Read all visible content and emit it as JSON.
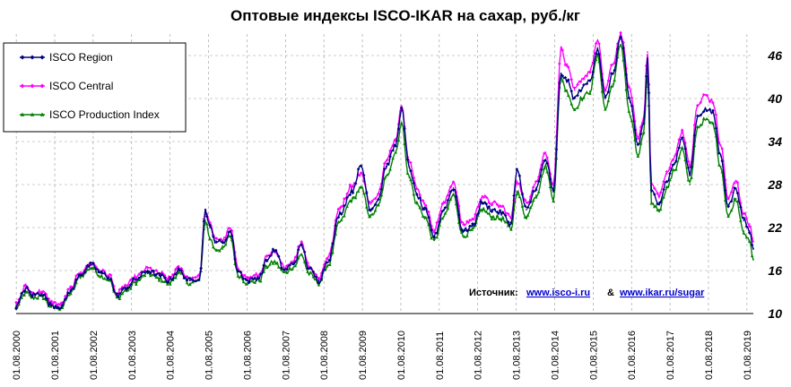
{
  "chart_data": {
    "type": "line",
    "title": "Оптовые индексы ISCO-IKAR на сахар, руб./кг",
    "ylim": [
      10,
      49
    ],
    "xlim": [
      2000.58,
      2019.75
    ],
    "yticks": [
      10,
      16,
      22,
      28,
      34,
      40,
      46
    ],
    "xticks": [
      "01.08.2000",
      "01.08.2001",
      "01.08.2002",
      "01.08.2003",
      "01.08.2004",
      "01.08.2005",
      "01.08.2006",
      "01.08.2007",
      "01.08.2008",
      "01.08.2009",
      "01.08.2010",
      "01.08.2011",
      "01.08.2012",
      "01.08.2013",
      "01.08.2014",
      "01.08.2015",
      "01.08.2016",
      "01.08.2017",
      "01.08.2018",
      "01.08.2019"
    ],
    "grid": true,
    "legend_position": "top-left",
    "x": [
      2000.58,
      2000.83,
      2001.0,
      2001.25,
      2001.5,
      2001.75,
      2002.0,
      2002.25,
      2002.55,
      2002.8,
      2003.0,
      2003.2,
      2003.45,
      2003.7,
      2004.0,
      2004.3,
      2004.55,
      2004.8,
      2005.1,
      2005.35,
      2005.5,
      2005.62,
      2005.75,
      2005.95,
      2006.15,
      2006.35,
      2006.6,
      2006.9,
      2007.1,
      2007.3,
      2007.55,
      2007.8,
      2008.0,
      2008.2,
      2008.45,
      2008.7,
      2009.0,
      2009.3,
      2009.55,
      2009.8,
      2010.0,
      2010.2,
      2010.45,
      2010.6,
      2010.8,
      2011.0,
      2011.2,
      2011.45,
      2011.7,
      2011.95,
      2012.2,
      2012.45,
      2012.7,
      2012.95,
      2013.2,
      2013.45,
      2013.6,
      2013.85,
      2014.1,
      2014.35,
      2014.55,
      2014.75,
      2014.9,
      2015.1,
      2015.3,
      2015.5,
      2015.7,
      2015.9,
      2016.1,
      2016.3,
      2016.55,
      2016.75,
      2016.9,
      2017.0,
      2017.1,
      2017.3,
      2017.5,
      2017.7,
      2017.9,
      2018.1,
      2018.3,
      2018.5,
      2018.7,
      2018.9,
      2019.1,
      2019.3,
      2019.5,
      2019.65,
      2019.75
    ],
    "series": [
      {
        "name": "ISCO Region",
        "color": "#000080",
        "marker": "diamond",
        "values": [
          11.0,
          13.5,
          12.6,
          12.8,
          11.2,
          11.0,
          13.2,
          15.5,
          16.8,
          15.6,
          15.1,
          12.5,
          13.6,
          14.8,
          16.0,
          15.3,
          14.6,
          16.0,
          14.6,
          15.0,
          24.5,
          22.0,
          20.2,
          19.8,
          21.5,
          15.9,
          14.6,
          15.0,
          17.5,
          18.8,
          16.1,
          17.0,
          19.5,
          16.2,
          14.6,
          17.5,
          24.0,
          27.0,
          30.5,
          24.5,
          26.0,
          30.5,
          33.5,
          38.5,
          30.5,
          26.5,
          24.5,
          20.8,
          24.5,
          27.5,
          21.5,
          22.2,
          25.5,
          24.5,
          24.0,
          22.5,
          30.0,
          24.5,
          27.5,
          31.5,
          27.0,
          43.5,
          42.5,
          40.0,
          41.5,
          42.5,
          47.0,
          40.0,
          43.5,
          48.5,
          39.5,
          33.5,
          36.5,
          45.5,
          27.0,
          25.5,
          28.5,
          31.0,
          34.5,
          29.5,
          37.5,
          38.5,
          38.0,
          32.0,
          25.0,
          27.5,
          23.0,
          21.5,
          19.0
        ]
      },
      {
        "name": "ISCO Central",
        "color": "#ff00ff",
        "marker": "diamond",
        "values": [
          11.3,
          13.8,
          12.9,
          13.1,
          11.5,
          11.3,
          13.5,
          15.8,
          17.0,
          15.9,
          15.4,
          12.8,
          13.9,
          15.1,
          16.3,
          15.6,
          14.9,
          16.3,
          14.9,
          15.3,
          24.2,
          22.5,
          20.6,
          20.2,
          21.9,
          16.3,
          15.0,
          15.4,
          17.9,
          18.5,
          16.5,
          17.4,
          20.0,
          16.6,
          15.0,
          18.0,
          24.8,
          27.8,
          29.5,
          25.3,
          26.8,
          31.2,
          34.4,
          39.0,
          31.4,
          27.4,
          25.4,
          21.7,
          25.4,
          28.4,
          22.4,
          23.1,
          26.4,
          25.4,
          24.9,
          23.4,
          28.5,
          25.4,
          28.4,
          32.5,
          27.9,
          47.0,
          44.5,
          41.2,
          42.8,
          43.8,
          48.0,
          41.2,
          44.8,
          49.0,
          41.0,
          34.5,
          37.5,
          46.5,
          28.0,
          26.5,
          29.5,
          32.0,
          35.5,
          30.5,
          39.0,
          40.5,
          39.5,
          33.5,
          26.0,
          28.5,
          24.0,
          22.5,
          20.0
        ]
      },
      {
        "name": "ISCO Production Index",
        "color": "#008000",
        "marker": "triangle",
        "values": [
          10.8,
          12.9,
          12.2,
          12.4,
          10.9,
          10.8,
          12.8,
          15.2,
          16.4,
          15.2,
          14.7,
          12.2,
          13.2,
          14.4,
          15.6,
          14.9,
          14.2,
          15.6,
          14.2,
          14.6,
          23.0,
          20.5,
          19.0,
          19.0,
          20.8,
          15.3,
          14.3,
          14.6,
          16.6,
          17.2,
          15.7,
          16.5,
          18.2,
          15.5,
          14.3,
          16.8,
          22.8,
          25.8,
          27.5,
          23.5,
          25.0,
          29.0,
          32.5,
          36.5,
          29.0,
          25.3,
          23.5,
          20.2,
          23.5,
          26.5,
          20.8,
          21.6,
          24.5,
          23.5,
          23.2,
          21.8,
          27.0,
          23.5,
          26.5,
          30.5,
          26.0,
          43.0,
          41.0,
          38.5,
          40.0,
          41.0,
          46.0,
          38.5,
          42.0,
          47.5,
          37.5,
          32.0,
          35.0,
          43.5,
          25.5,
          24.5,
          27.5,
          30.0,
          33.0,
          28.0,
          36.0,
          37.0,
          36.5,
          30.5,
          23.5,
          26.0,
          21.5,
          20.0,
          17.5
        ]
      }
    ]
  },
  "source": {
    "label": "Источник:",
    "link1": "www.isco-i.ru",
    "separator": "&",
    "link2": "www.ikar.ru/sugar"
  }
}
